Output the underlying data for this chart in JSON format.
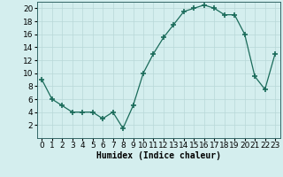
{
  "x": [
    0,
    1,
    2,
    3,
    4,
    5,
    6,
    7,
    8,
    9,
    10,
    11,
    12,
    13,
    14,
    15,
    16,
    17,
    18,
    19,
    20,
    21,
    22,
    23
  ],
  "y": [
    9,
    6,
    5,
    4,
    4,
    4,
    3,
    4,
    1.5,
    5,
    10,
    13,
    15.5,
    17.5,
    19.5,
    20,
    20.5,
    20,
    19,
    19,
    16,
    9.5,
    7.5,
    13
  ],
  "line_color": "#1a6b5a",
  "marker": "+",
  "marker_size": 4,
  "bg_color": "#d4eeee",
  "grid_color": "#b8d8d8",
  "xlabel": "Humidex (Indice chaleur)",
  "xlim": [
    -0.5,
    23.5
  ],
  "ylim": [
    0,
    21
  ],
  "yticks": [
    2,
    4,
    6,
    8,
    10,
    12,
    14,
    16,
    18,
    20
  ],
  "xlabel_fontsize": 7,
  "tick_fontsize": 6.5
}
